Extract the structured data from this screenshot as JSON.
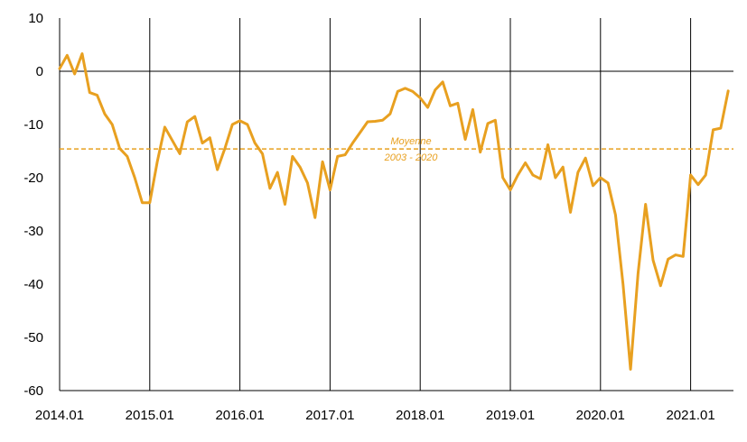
{
  "chart_data": {
    "type": "line",
    "title": "",
    "xlabel": "",
    "ylabel": "",
    "ylim": [
      -60,
      10
    ],
    "yticks": [
      10,
      0,
      -10,
      -20,
      -30,
      -40,
      -50,
      -60
    ],
    "xticks": [
      "2014.01",
      "2015.01",
      "2016.01",
      "2017.01",
      "2018.01",
      "2019.01",
      "2020.01",
      "2021.01"
    ],
    "grid": {
      "vertical_year_lines": true,
      "horizontal_zero_line": true
    },
    "line_color": "#E8A020",
    "average": {
      "value": -14.6,
      "label_line1": "Moyenne",
      "label_line2": "2003 - 2020",
      "color": "#E8A020",
      "style": "dashed"
    },
    "series": [
      {
        "start": "2014.01",
        "frequency": "monthly",
        "values": [
          0.5,
          3.0,
          -0.5,
          3.3,
          -4.0,
          -4.5,
          -8.0,
          -10.0,
          -14.5,
          -16.0,
          -20.0,
          -24.7,
          -24.7,
          -17.0,
          -10.5,
          -13.0,
          -15.5,
          -9.5,
          -8.5,
          -13.5,
          -12.5,
          -18.5,
          -14.5,
          -10.0,
          -9.3,
          -10.0,
          -13.5,
          -15.5,
          -22.0,
          -19.0,
          -25.0,
          -16.0,
          -18.0,
          -21.0,
          -27.5,
          -17.0,
          -22.3,
          -16.0,
          -15.7,
          -13.5,
          -11.5,
          -9.5,
          -9.4,
          -9.2,
          -8.0,
          -3.8,
          -3.2,
          -3.8,
          -5.0,
          -6.8,
          -3.5,
          -2.0,
          -6.5,
          -6.0,
          -12.8,
          -7.2,
          -15.2,
          -9.8,
          -9.2,
          -20.0,
          -22.3,
          -19.5,
          -17.2,
          -19.5,
          -20.2,
          -13.8,
          -20.0,
          -18.0,
          -26.5,
          -19.0,
          -16.3,
          -21.5,
          -20.0,
          -21.0,
          -27.0,
          -40.0,
          -56.0,
          -38.0,
          -25.0,
          -35.5,
          -40.3,
          -35.3,
          -34.5,
          -34.8,
          -19.5,
          -21.3,
          -19.5,
          -11.0,
          -10.7,
          -3.7
        ]
      }
    ]
  }
}
